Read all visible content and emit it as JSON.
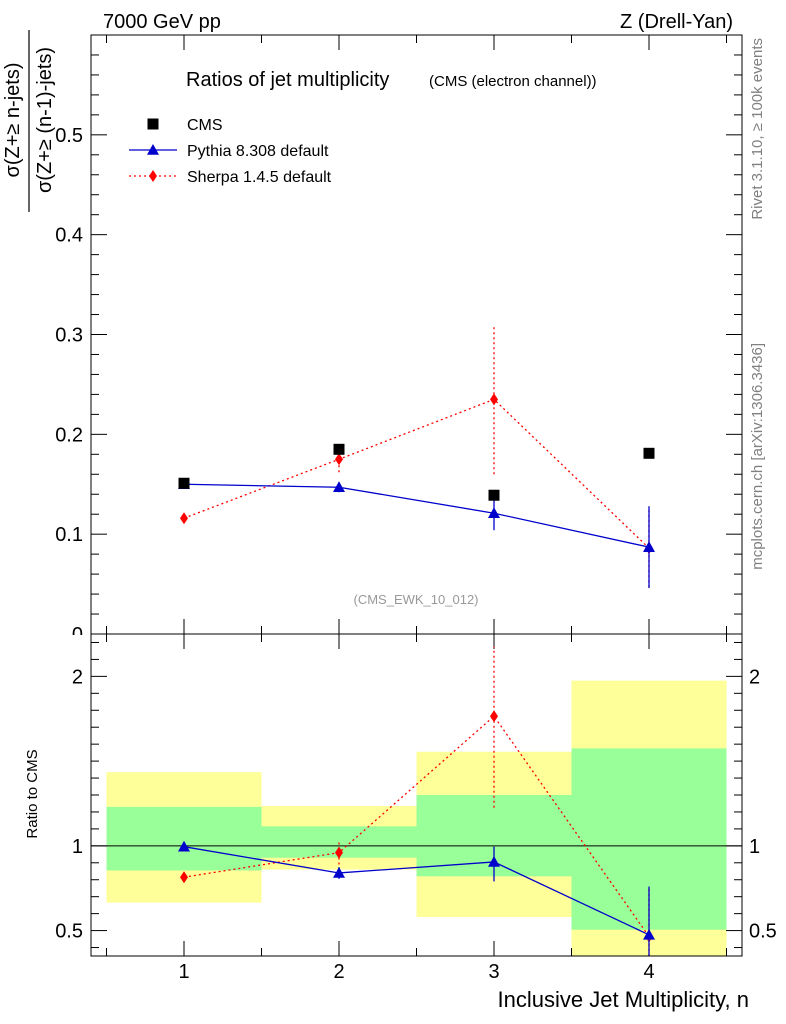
{
  "header": {
    "left": "7000 GeV pp",
    "right": "Z (Drell-Yan)",
    "side_top": "Rivet 3.1.10, ≥ 100k events",
    "side_bottom": "mcplots.cern.ch [arXiv:1306.3436]"
  },
  "chart_data": [
    {
      "type": "scatter",
      "title": "Ratios of jet multiplicity",
      "subtitle": "(CMS (electron channel))",
      "ylabel_num": "σ(Z+≥ n-jets)",
      "ylabel_den": "σ(Z+≥ (n-1)-jets)",
      "annotation": "(CMS_EWK_10_012)",
      "xlim": [
        0.4,
        4.6
      ],
      "ylim": [
        0,
        0.6
      ],
      "yticks": [
        0.1,
        0.2,
        0.3,
        0.4,
        0.5
      ],
      "ytick_labels": [
        "0.1",
        "0.2",
        "0.3",
        "0.4",
        "0.5"
      ],
      "ytick_zero_label": "0",
      "legend_position": "top-left",
      "series": [
        {
          "name": "CMS",
          "style": "markers",
          "color": "#000000",
          "x": [
            1,
            2,
            3,
            4
          ],
          "y": [
            0.151,
            0.185,
            0.139,
            0.181
          ]
        },
        {
          "name": "Pythia 8.308 default",
          "style": "line",
          "color": "#0000cc",
          "x": [
            1,
            2,
            3,
            4
          ],
          "y": [
            0.15,
            0.147,
            0.121,
            0.087
          ],
          "err_low": [
            0.002,
            0.005,
            0.017,
            0.041
          ],
          "err_high": [
            0.002,
            0.005,
            0.017,
            0.041
          ]
        },
        {
          "name": "Sherpa 1.4.5 default",
          "style": "dotted",
          "color": "#ff0000",
          "x": [
            1,
            2,
            3,
            4
          ],
          "y": [
            0.116,
            0.175,
            0.235,
            0.086
          ],
          "err_low": [
            0.002,
            0.013,
            0.075,
            0.039
          ],
          "err_high": [
            0.002,
            0.013,
            0.075,
            0.039
          ]
        }
      ]
    },
    {
      "type": "scatter",
      "ylabel": "Ratio to CMS",
      "xlabel": "Inclusive Jet Multiplicity, n",
      "xlim": [
        0.4,
        4.6
      ],
      "ylim": [
        0.35,
        2.25
      ],
      "xticks": [
        1,
        2,
        3,
        4
      ],
      "xtick_labels": [
        "1",
        "2",
        "3",
        "4"
      ],
      "yticks": [
        0.5,
        1,
        2
      ],
      "ytick_labels": [
        "0.5",
        "1",
        "2"
      ],
      "bands": [
        {
          "x0": 0.5,
          "x1": 1.5,
          "yellow": [
            0.665,
            1.435
          ],
          "green": [
            0.855,
            1.23
          ]
        },
        {
          "x0": 1.5,
          "x1": 2.5,
          "yellow": [
            0.86,
            1.235
          ],
          "green": [
            0.93,
            1.115
          ]
        },
        {
          "x0": 2.5,
          "x1": 3.5,
          "yellow": [
            0.58,
            1.555
          ],
          "green": [
            0.82,
            1.3
          ]
        },
        {
          "x0": 3.5,
          "x1": 4.5,
          "yellow": [
            0.35,
            1.975
          ],
          "green": [
            0.505,
            1.575
          ]
        }
      ],
      "series": [
        {
          "name": "Pythia 8.308 default",
          "style": "line",
          "color": "#0000cc",
          "x": [
            1,
            2,
            3,
            4
          ],
          "y": [
            0.995,
            0.84,
            0.905,
            0.475
          ],
          "err_low": [
            0.01,
            0.035,
            0.115,
            0.23
          ],
          "err_high": [
            0.01,
            0.035,
            0.09,
            0.285
          ]
        },
        {
          "name": "Sherpa 1.4.5 default",
          "style": "dotted",
          "color": "#ff0000",
          "x": [
            1,
            2,
            3,
            4
          ],
          "y": [
            0.815,
            0.96,
            1.765,
            0.465
          ],
          "err_low": [
            0.01,
            0.07,
            0.54,
            0.22
          ],
          "err_high": [
            0.01,
            0.07,
            0.41,
            0.285
          ]
        }
      ]
    }
  ]
}
